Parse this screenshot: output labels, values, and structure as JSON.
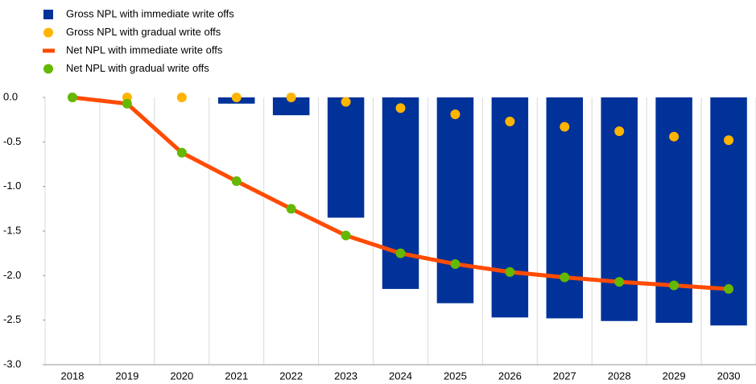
{
  "chart_data": {
    "type": "bar",
    "categories": [
      "2018",
      "2019",
      "2020",
      "2021",
      "2022",
      "2023",
      "2024",
      "2025",
      "2026",
      "2027",
      "2028",
      "2029",
      "2030"
    ],
    "series": [
      {
        "name": "Gross NPL with immediate write offs",
        "type": "bar",
        "color": "#003299",
        "values": [
          0,
          0,
          0,
          -0.07,
          -0.2,
          -1.35,
          -2.15,
          -2.31,
          -2.47,
          -2.48,
          -2.51,
          -2.53,
          -2.56
        ]
      },
      {
        "name": "Gross NPL with gradual write offs",
        "type": "scatter",
        "color": "#ffb400",
        "values": [
          0,
          0,
          0,
          0,
          0,
          -0.05,
          -0.12,
          -0.19,
          -0.27,
          -0.33,
          -0.38,
          -0.44,
          -0.48
        ]
      },
      {
        "name": "Net NPL with immediate write offs",
        "type": "line",
        "color": "#ff4b00",
        "values": [
          0,
          -0.07,
          -0.62,
          -0.94,
          -1.25,
          -1.55,
          -1.75,
          -1.87,
          -1.96,
          -2.02,
          -2.07,
          -2.11,
          -2.15
        ]
      },
      {
        "name": "Net NPL with gradual write offs",
        "type": "scatter",
        "color": "#65b800",
        "values": [
          0,
          -0.07,
          -0.62,
          -0.94,
          -1.25,
          -1.55,
          -1.75,
          -1.87,
          -1.96,
          -2.02,
          -2.07,
          -2.11,
          -2.15
        ]
      }
    ],
    "ylim": [
      -3,
      0
    ],
    "yticks": [
      {
        "value": 0,
        "label": "0.0"
      },
      -0.5,
      {
        "value": -1,
        "label": "-1.0"
      },
      -1.5,
      {
        "value": -2,
        "label": "-2.0"
      },
      -2.5,
      {
        "value": -3,
        "label": "-3.0"
      }
    ],
    "legend": "top-left"
  }
}
